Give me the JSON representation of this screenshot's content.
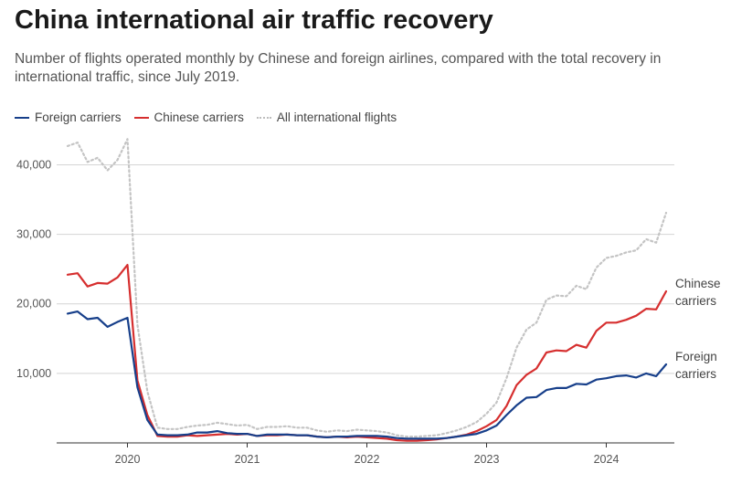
{
  "header": {
    "title": "China international air traffic recovery",
    "subtitle": "Number of flights operated monthly by Chinese and foreign airlines, compared with the total recovery in international traffic, since July 2019."
  },
  "colors": {
    "foreign": "#173f8a",
    "chinese": "#d62f2f",
    "all": "#c4c4c4"
  },
  "chart_data": {
    "type": "line",
    "title": "China international air traffic recovery",
    "x_start": "2019-07",
    "x_end": "2024-07",
    "xticks": [
      "2020",
      "2021",
      "2022",
      "2023",
      "2024"
    ],
    "ylim": [
      0,
      44000
    ],
    "yticks": [
      10000,
      20000,
      30000,
      40000
    ],
    "ytick_labels": [
      "10,000",
      "20,000",
      "30,000",
      "40,000"
    ],
    "grid": "horizontal",
    "legend_position": "top-left",
    "series": [
      {
        "name": "Foreign carriers",
        "key": "foreign",
        "end_label": [
          "Foreign",
          "carriers"
        ],
        "values": [
          18600,
          18900,
          17800,
          18000,
          16700,
          17400,
          18000,
          8000,
          3300,
          1200,
          1100,
          1100,
          1200,
          1500,
          1500,
          1700,
          1400,
          1300,
          1300,
          1000,
          1200,
          1200,
          1200,
          1100,
          1100,
          900,
          800,
          900,
          900,
          1000,
          1000,
          1000,
          900,
          700,
          600,
          600,
          600,
          600,
          700,
          900,
          1100,
          1300,
          1800,
          2500,
          4000,
          5400,
          6500,
          6600,
          7600,
          7900,
          7900,
          8500,
          8400,
          9100,
          9300,
          9600,
          9700,
          9400,
          10000,
          9600,
          11300
        ]
      },
      {
        "name": "Chinese carriers",
        "key": "chinese",
        "end_label": [
          "Chinese",
          "carriers"
        ],
        "values": [
          24200,
          24400,
          22500,
          23000,
          22900,
          23800,
          25600,
          9000,
          4000,
          1000,
          900,
          900,
          1100,
          1000,
          1100,
          1200,
          1300,
          1200,
          1300,
          1000,
          1100,
          1100,
          1200,
          1100,
          1100,
          900,
          800,
          900,
          800,
          900,
          800,
          700,
          600,
          400,
          300,
          300,
          400,
          500,
          700,
          900,
          1200,
          1700,
          2400,
          3300,
          5300,
          8300,
          9800,
          10700,
          13000,
          13300,
          13200,
          14100,
          13700,
          16100,
          17300,
          17300,
          17700,
          18300,
          19300,
          19200,
          21800
        ]
      },
      {
        "name": "All international flights",
        "key": "all",
        "values": [
          42700,
          43200,
          40400,
          41000,
          39200,
          40700,
          43700,
          17000,
          7400,
          2200,
          2000,
          2000,
          2300,
          2500,
          2600,
          2900,
          2700,
          2500,
          2600,
          2000,
          2300,
          2300,
          2400,
          2200,
          2200,
          1800,
          1600,
          1800,
          1700,
          1900,
          1800,
          1700,
          1500,
          1100,
          900,
          900,
          1000,
          1100,
          1400,
          1800,
          2300,
          3000,
          4200,
          5800,
          9300,
          13700,
          16300,
          17300,
          20600,
          21200,
          21100,
          22600,
          22100,
          25200,
          26600,
          26900,
          27400,
          27700,
          29300,
          28800,
          33100
        ]
      }
    ]
  }
}
